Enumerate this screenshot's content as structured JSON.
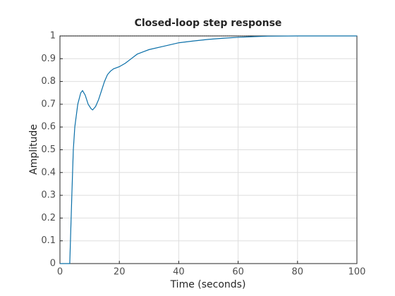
{
  "chart_data": {
    "type": "line",
    "title": "Closed-loop step response",
    "x_label": "Time (seconds)",
    "y_label": "Amplitude",
    "xlim": [
      0,
      100
    ],
    "ylim": [
      0,
      1
    ],
    "xticks": [
      0,
      20,
      40,
      60,
      80,
      100
    ],
    "yticks": [
      0,
      0.1,
      0.2,
      0.3,
      0.4,
      0.5,
      0.6,
      0.7,
      0.8,
      0.9,
      1
    ],
    "grid": true,
    "series": [
      {
        "color": "#0a6fa8",
        "x": [
          0,
          3.3,
          4,
          4.5,
          5,
          6,
          7,
          7.6,
          8.5,
          9.5,
          10.5,
          11,
          12,
          13,
          14,
          15,
          16,
          17,
          18,
          20,
          22,
          24,
          26,
          28,
          30,
          35,
          40,
          45,
          50,
          55,
          60,
          65,
          70,
          80,
          90,
          100
        ],
        "values": [
          0,
          0,
          0.3,
          0.5,
          0.6,
          0.7,
          0.75,
          0.76,
          0.74,
          0.7,
          0.68,
          0.675,
          0.69,
          0.72,
          0.76,
          0.8,
          0.83,
          0.845,
          0.855,
          0.865,
          0.88,
          0.9,
          0.92,
          0.93,
          0.94,
          0.955,
          0.97,
          0.978,
          0.985,
          0.99,
          0.994,
          0.997,
          0.999,
          1,
          1,
          1
        ]
      },
      {
        "color": "#000000",
        "dashed": true,
        "x": [
          0,
          65
        ],
        "values": [
          1,
          1
        ]
      }
    ]
  }
}
